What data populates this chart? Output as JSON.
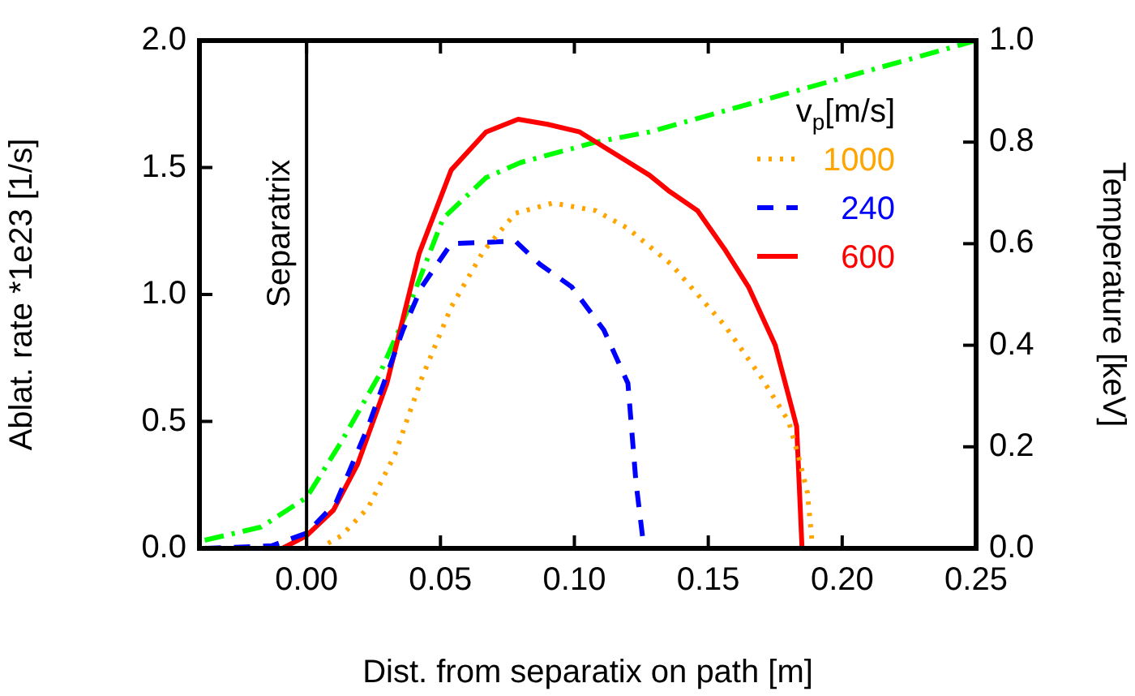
{
  "chart_data": {
    "type": "line",
    "xlabel": "Dist. from separatix on path [m]",
    "ylabel": "Ablat. rate *1e23 [1/s]",
    "y2label": "Temperature [keV]",
    "legend_title": "v$_{p}$[m/s]",
    "legend": "top right",
    "grid": false,
    "marker": "none",
    "xlim": [
      -0.04,
      0.25
    ],
    "xticks": [
      {
        "value": 0,
        "label": "0.00"
      },
      0.05,
      {
        "value": 0.1,
        "label": "0.10"
      },
      0.15,
      {
        "value": 0.2,
        "label": "0.20"
      },
      0.25
    ],
    "ylim": [
      0,
      2
    ],
    "yticks": [
      {
        "value": 0,
        "label": "0.0"
      },
      0.5,
      {
        "value": 1,
        "label": "1.0"
      },
      1.5,
      {
        "value": 2,
        "label": "2.0"
      }
    ],
    "y2lim": [
      0,
      1
    ],
    "y2ticks": [
      {
        "value": 0,
        "label": "0.0"
      },
      0.2,
      0.4,
      0.6,
      0.8,
      {
        "value": 1,
        "label": "1.0"
      }
    ],
    "ref_lines": [
      {
        "axis": "x",
        "value": 0,
        "label": "Separatrix",
        "color": "#000000",
        "line_style": "solid"
      }
    ],
    "series": [
      {
        "name": "1000",
        "color": "#ffa500",
        "line_style": "dotted",
        "x": [
          0.008,
          0.013,
          0.023,
          0.033,
          0.043,
          0.054,
          0.066,
          0.078,
          0.092,
          0.108,
          0.12,
          0.136,
          0.156,
          0.17,
          0.18,
          0.184,
          0.187,
          0.189
        ],
        "values": [
          0.02,
          0.05,
          0.16,
          0.37,
          0.67,
          0.95,
          1.17,
          1.32,
          1.36,
          1.33,
          1.26,
          1.12,
          0.88,
          0.67,
          0.5,
          0.35,
          0.22,
          0
        ]
      },
      {
        "name": "240",
        "color": "#0000ff",
        "line_style": "dashed",
        "x": [
          -0.038,
          -0.013,
          0,
          0.011,
          0.023,
          0.036,
          0.043,
          0.054,
          0.078,
          0.087,
          0.099,
          0.111,
          0.12,
          0.123,
          0.126
        ],
        "values": [
          0,
          0.01,
          0.06,
          0.18,
          0.48,
          0.86,
          1.03,
          1.2,
          1.21,
          1.12,
          1.03,
          0.86,
          0.65,
          0.26,
          0
        ]
      },
      {
        "name": "600",
        "color": "#ff0000",
        "line_style": "solid",
        "x": [
          -0.038,
          -0.009,
          0,
          0.01,
          0.019,
          0.03,
          0.042,
          0.054,
          0.067,
          0.079,
          0.09,
          0.102,
          0.128,
          0.135,
          0.146,
          0.156,
          0.165,
          0.175,
          0.183,
          0.185
        ],
        "values": [
          0,
          0,
          0.05,
          0.15,
          0.33,
          0.65,
          1.16,
          1.49,
          1.64,
          1.69,
          1.67,
          1.64,
          1.47,
          1.41,
          1.33,
          1.18,
          1.03,
          0.8,
          0.48,
          0
        ]
      },
      {
        "color": "#00ff00",
        "line_style": "dashdot",
        "axis": "y2",
        "x": [
          -0.038,
          -0.017,
          0,
          0.013,
          0.027,
          0.037,
          0.051,
          0.067,
          0.08,
          0.108,
          0.128,
          0.25
        ],
        "values": [
          0.016,
          0.042,
          0.1,
          0.21,
          0.34,
          0.46,
          0.65,
          0.73,
          0.76,
          0.8,
          0.82,
          1.0
        ]
      }
    ]
  }
}
